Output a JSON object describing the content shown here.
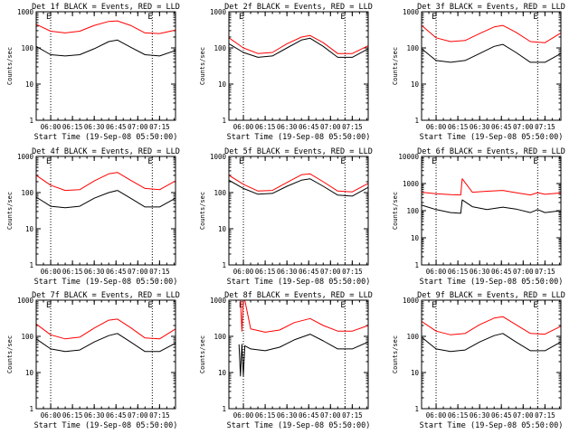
{
  "chart_data": [
    {
      "type": "line",
      "title": "Det 1f BLACK = Events, RED = LLD",
      "ylabel": "Counts/sec",
      "xlabel": "Start Time (19-Sep-08 05:50:00)",
      "yscale": "log",
      "ylim": [
        1,
        1000
      ],
      "yticks": [
        "1",
        "10",
        "100",
        "1000"
      ],
      "xlim": [
        "05:50",
        "07:26"
      ],
      "xticks": [
        "06:00",
        "06:15",
        "06:30",
        "06:45",
        "07:00",
        "07:15"
      ],
      "markers": [
        {
          "label": "E",
          "x": "06:00"
        },
        {
          "label": "E",
          "x": "07:10"
        }
      ],
      "x": [
        "05:50",
        "06:00",
        "06:10",
        "06:20",
        "06:30",
        "06:40",
        "06:46",
        "06:55",
        "07:05",
        "07:15",
        "07:26"
      ],
      "series": [
        {
          "name": "BLACK = Events",
          "color": "#000000",
          "values": [
            110,
            65,
            60,
            65,
            95,
            150,
            165,
            105,
            65,
            60,
            85
          ]
        },
        {
          "name": "RED = LLD",
          "color": "#ff0000",
          "values": [
            450,
            290,
            260,
            290,
            420,
            540,
            560,
            420,
            260,
            250,
            310
          ]
        }
      ]
    },
    {
      "type": "line",
      "title": "Det 2f BLACK = Events, RED = LLD",
      "ylabel": "Counts/sec",
      "xlabel": "Start Time (19-Sep-08 05:50:00)",
      "yscale": "log",
      "ylim": [
        1,
        1000
      ],
      "yticks": [
        "1",
        "10",
        "100",
        "1000"
      ],
      "xlim": [
        "05:50",
        "07:26"
      ],
      "xticks": [
        "06:00",
        "06:15",
        "06:30",
        "06:45",
        "07:00",
        "07:15"
      ],
      "markers": [
        {
          "label": "E",
          "x": "06:00"
        },
        {
          "label": "E",
          "x": "07:10"
        }
      ],
      "x": [
        "05:50",
        "06:00",
        "06:10",
        "06:20",
        "06:30",
        "06:40",
        "06:46",
        "06:55",
        "07:05",
        "07:15",
        "07:26"
      ],
      "series": [
        {
          "name": "BLACK = Events",
          "color": "#000000",
          "values": [
            130,
            75,
            55,
            60,
            100,
            165,
            185,
            110,
            55,
            55,
            95
          ]
        },
        {
          "name": "RED = LLD",
          "color": "#ff0000",
          "values": [
            190,
            100,
            70,
            75,
            130,
            200,
            220,
            140,
            70,
            70,
            115
          ]
        }
      ]
    },
    {
      "type": "line",
      "title": "Det 3f BLACK = Events, RED = LLD",
      "ylabel": "Counts/sec",
      "xlabel": "Start Time (19-Sep-08 05:50:00)",
      "yscale": "log",
      "ylim": [
        1,
        1000
      ],
      "yticks": [
        "1",
        "10",
        "100",
        "1000"
      ],
      "xlim": [
        "05:50",
        "07:26"
      ],
      "xticks": [
        "06:00",
        "06:15",
        "06:30",
        "06:45",
        "07:00",
        "07:15"
      ],
      "markers": [
        {
          "label": "E",
          "x": "06:00"
        },
        {
          "label": "E",
          "x": "07:10"
        }
      ],
      "x": [
        "05:50",
        "06:00",
        "06:10",
        "06:20",
        "06:30",
        "06:40",
        "06:46",
        "06:55",
        "07:05",
        "07:15",
        "07:26"
      ],
      "series": [
        {
          "name": "BLACK = Events",
          "color": "#000000",
          "values": [
            95,
            45,
            40,
            45,
            70,
            110,
            125,
            75,
            40,
            40,
            70
          ]
        },
        {
          "name": "RED = LLD",
          "color": "#ff0000",
          "values": [
            420,
            190,
            150,
            160,
            250,
            380,
            420,
            270,
            150,
            140,
            260
          ]
        }
      ]
    },
    {
      "type": "line",
      "title": "Det 4f BLACK = Events, RED = LLD",
      "ylabel": "Counts/sec",
      "xlabel": "Start Time (19-Sep-08 05:50:00)",
      "yscale": "log",
      "ylim": [
        1,
        1000
      ],
      "yticks": [
        "1",
        "10",
        "100",
        "1000"
      ],
      "xlim": [
        "05:50",
        "07:26"
      ],
      "xticks": [
        "06:00",
        "06:15",
        "06:30",
        "06:45",
        "07:00",
        "07:15"
      ],
      "markers": [
        {
          "label": "E",
          "x": "06:00"
        },
        {
          "label": "E",
          "x": "07:10"
        }
      ],
      "x": [
        "05:50",
        "06:00",
        "06:10",
        "06:20",
        "06:30",
        "06:40",
        "06:46",
        "06:55",
        "07:05",
        "07:15",
        "07:26"
      ],
      "series": [
        {
          "name": "BLACK = Events",
          "color": "#000000",
          "values": [
            75,
            42,
            38,
            42,
            70,
            100,
            115,
            70,
            40,
            40,
            70
          ]
        },
        {
          "name": "RED = LLD",
          "color": "#ff0000",
          "values": [
            300,
            160,
            115,
            120,
            210,
            330,
            360,
            220,
            130,
            120,
            210
          ]
        }
      ]
    },
    {
      "type": "line",
      "title": "Det 5f BLACK = Events, RED = LLD",
      "ylabel": "Counts/sec",
      "xlabel": "Start Time (19-Sep-08 05:50:00)",
      "yscale": "log",
      "ylim": [
        1,
        1000
      ],
      "yticks": [
        "1",
        "10",
        "100",
        "1000"
      ],
      "xlim": [
        "05:50",
        "07:26"
      ],
      "xticks": [
        "06:00",
        "06:15",
        "06:30",
        "06:45",
        "07:00",
        "07:15"
      ],
      "markers": [
        {
          "label": "E",
          "x": "06:00"
        },
        {
          "label": "E",
          "x": "07:10"
        }
      ],
      "x": [
        "05:50",
        "06:00",
        "06:10",
        "06:20",
        "06:30",
        "06:40",
        "06:46",
        "06:55",
        "07:05",
        "07:15",
        "07:26"
      ],
      "series": [
        {
          "name": "BLACK = Events",
          "color": "#000000",
          "values": [
            220,
            130,
            90,
            95,
            150,
            220,
            240,
            150,
            85,
            80,
            140
          ]
        },
        {
          "name": "RED = LLD",
          "color": "#ff0000",
          "values": [
            300,
            170,
            110,
            115,
            190,
            310,
            330,
            200,
            110,
            105,
            180
          ]
        }
      ]
    },
    {
      "type": "line",
      "title": "Det 6f BLACK = Events, RED = LLD",
      "ylabel": "Counts/sec",
      "xlabel": "Start Time (19-Sep-08 05:50:00)",
      "yscale": "log",
      "ylim": [
        1,
        10000
      ],
      "yticks": [
        "1",
        "10",
        "100",
        "1000",
        "10000"
      ],
      "xlim": [
        "05:50",
        "07:26"
      ],
      "xticks": [
        "06:00",
        "06:15",
        "06:30",
        "06:45",
        "07:00",
        "07:15"
      ],
      "markers": [
        {
          "label": "E",
          "x": "06:00"
        },
        {
          "label": "E",
          "x": "07:10"
        }
      ],
      "x": [
        "05:50",
        "06:00",
        "06:10",
        "06:17",
        "06:18",
        "06:25",
        "06:35",
        "06:46",
        "06:55",
        "07:05",
        "07:10",
        "07:15",
        "07:26"
      ],
      "series": [
        {
          "name": "BLACK = Events",
          "color": "#000000",
          "values": [
            160,
            110,
            85,
            80,
            250,
            140,
            110,
            135,
            115,
            85,
            110,
            85,
            100
          ]
        },
        {
          "name": "RED = LLD",
          "color": "#ff0000",
          "values": [
            480,
            420,
            390,
            380,
            1500,
            480,
            520,
            560,
            460,
            380,
            460,
            400,
            450
          ]
        }
      ]
    },
    {
      "type": "line",
      "title": "Det 7f BLACK = Events, RED = LLD",
      "ylabel": "Counts/sec",
      "xlabel": "Start Time (19-Sep-08 05:50:00)",
      "yscale": "log",
      "ylim": [
        1,
        1000
      ],
      "yticks": [
        "1",
        "10",
        "100",
        "1000"
      ],
      "xlim": [
        "05:50",
        "07:26"
      ],
      "xticks": [
        "06:00",
        "06:15",
        "06:30",
        "06:45",
        "07:00",
        "07:15"
      ],
      "markers": [
        {
          "label": "E",
          "x": "06:00"
        },
        {
          "label": "E",
          "x": "07:10"
        }
      ],
      "x": [
        "05:50",
        "06:00",
        "06:10",
        "06:20",
        "06:30",
        "06:40",
        "06:46",
        "06:55",
        "07:05",
        "07:15",
        "07:26"
      ],
      "series": [
        {
          "name": "BLACK = Events",
          "color": "#000000",
          "values": [
            85,
            45,
            38,
            42,
            70,
            105,
            120,
            70,
            38,
            38,
            65
          ]
        },
        {
          "name": "RED = LLD",
          "color": "#ff0000",
          "values": [
            220,
            110,
            85,
            95,
            170,
            280,
            300,
            175,
            90,
            85,
            160
          ]
        }
      ]
    },
    {
      "type": "line",
      "title": "Det 8f BLACK = Events, RED = LLD",
      "ylabel": "Counts/sec",
      "xlabel": "Start Time (19-Sep-08 05:50:00)",
      "yscale": "log",
      "ylim": [
        1,
        1000
      ],
      "yticks": [
        "1",
        "10",
        "100",
        "1000"
      ],
      "xlim": [
        "05:50",
        "07:26"
      ],
      "xticks": [
        "06:00",
        "06:15",
        "06:30",
        "06:45",
        "07:00",
        "07:15"
      ],
      "markers": [
        {
          "label": "E",
          "x": "06:00"
        },
        {
          "label": "E",
          "x": "07:10"
        }
      ],
      "x": [
        "05:57",
        "05:58",
        "05:59",
        "06:00",
        "06:01",
        "06:05",
        "06:15",
        "06:25",
        "06:35",
        "06:46",
        "06:55",
        "07:05",
        "07:15",
        "07:26"
      ],
      "series": [
        {
          "name": "BLACK = Events",
          "color": "#000000",
          "values": [
            60,
            8,
            60,
            8,
            55,
            45,
            40,
            50,
            80,
            115,
            75,
            45,
            45,
            70
          ]
        },
        {
          "name": "RED = LLD",
          "color": "#ff0000",
          "values": [
            1000,
            1000,
            140,
            1000,
            1000,
            160,
            130,
            150,
            240,
            310,
            200,
            140,
            140,
            200
          ]
        }
      ]
    },
    {
      "type": "line",
      "title": "Det 9f BLACK = Events, RED = LLD",
      "ylabel": "Counts/sec",
      "xlabel": "Start Time (19-Sep-08 05:50:00)",
      "yscale": "log",
      "ylim": [
        1,
        1000
      ],
      "yticks": [
        "1",
        "10",
        "100",
        "1000"
      ],
      "xlim": [
        "05:50",
        "07:26"
      ],
      "xticks": [
        "06:00",
        "06:15",
        "06:30",
        "06:45",
        "07:00",
        "07:15"
      ],
      "markers": [
        {
          "label": "E",
          "x": "06:00"
        },
        {
          "label": "E",
          "x": "07:10"
        }
      ],
      "x": [
        "05:50",
        "06:00",
        "06:10",
        "06:20",
        "06:30",
        "06:40",
        "06:46",
        "06:55",
        "07:05",
        "07:15",
        "07:26"
      ],
      "series": [
        {
          "name": "BLACK = Events",
          "color": "#000000",
          "values": [
            95,
            45,
            38,
            42,
            70,
            105,
            120,
            70,
            40,
            40,
            70
          ]
        },
        {
          "name": "RED = LLD",
          "color": "#ff0000",
          "values": [
            260,
            140,
            110,
            120,
            210,
            320,
            350,
            210,
            120,
            115,
            190
          ]
        }
      ]
    }
  ]
}
